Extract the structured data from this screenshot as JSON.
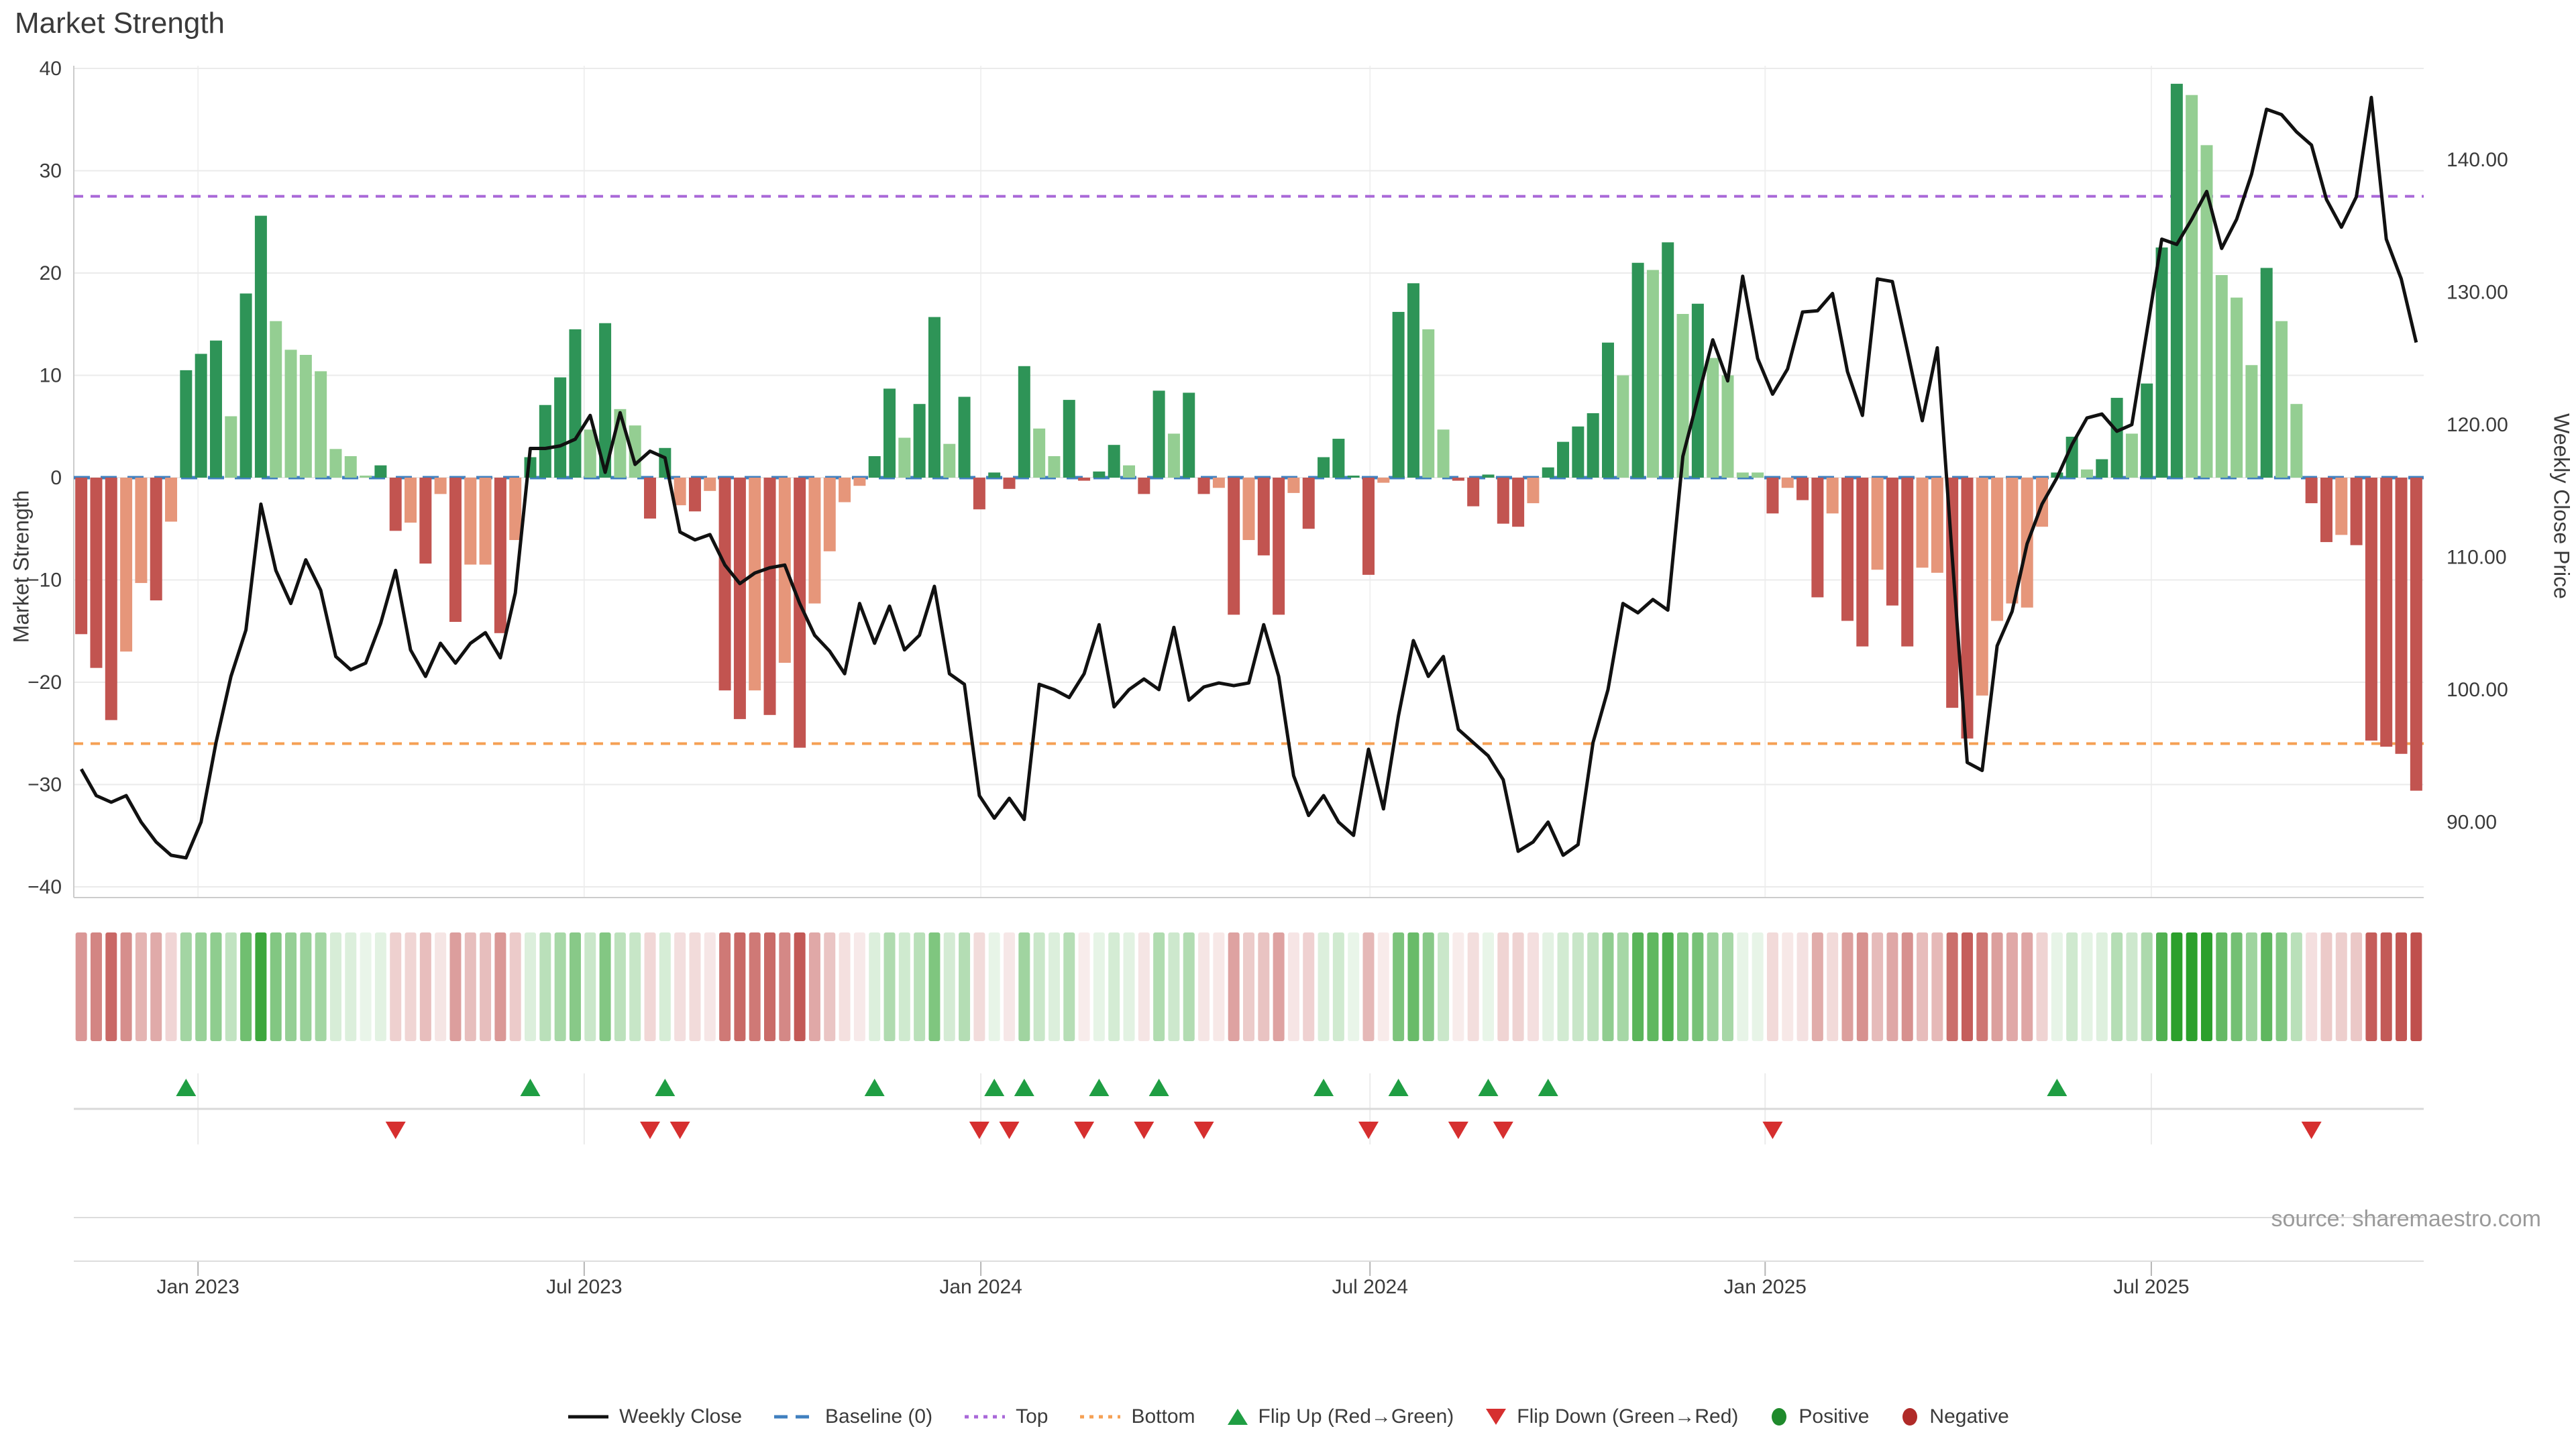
{
  "title": "Market Strength",
  "source": "source: sharemaestro.com",
  "axes": {
    "left_label": "Market Strength",
    "right_label": "Weekly Close Price",
    "yticks_left": [
      "40",
      "30",
      "20",
      "10",
      "0",
      "−10",
      "−20",
      "−30",
      "−40"
    ],
    "yticks_left_values": [
      40,
      30,
      20,
      10,
      0,
      -10,
      -20,
      -30,
      -40
    ],
    "yticks_right": [
      "140.00",
      "130.00",
      "120.00",
      "110.00",
      "100.00",
      "90.00"
    ],
    "yticks_right_values": [
      140,
      130,
      120,
      110,
      100,
      90
    ]
  },
  "reference_lines": {
    "baseline_label": "Baseline (0)",
    "baseline_value": 0,
    "top_label": "Top",
    "top_value": 27.5,
    "bottom_label": "Bottom",
    "bottom_value": -26
  },
  "legend": {
    "items": [
      {
        "label": "Weekly Close",
        "swatch": "line"
      },
      {
        "label": "Baseline (0)",
        "swatch": "dash-blue"
      },
      {
        "label": "Top",
        "swatch": "dot-purple"
      },
      {
        "label": "Bottom",
        "swatch": "dot-orange"
      },
      {
        "label": "Flip Up (Red→Green)",
        "swatch": "triangle-up"
      },
      {
        "label": "Flip Down (Green→Red)",
        "swatch": "triangle-down"
      },
      {
        "label": "Positive",
        "swatch": "circle-green"
      },
      {
        "label": "Negative",
        "swatch": "circle-red"
      }
    ]
  },
  "colors": {
    "pos_dark": "#2e9457",
    "pos_light": "#94ce92",
    "neg_dark": "#c25450",
    "neg_light": "#e6967a",
    "line": "#111111",
    "baseline": "#4080bf",
    "top": "#a968d8",
    "bottom": "#f5a054",
    "grid": "#ebebeb",
    "vgrid": "#f0f0f0",
    "spine": "#cccccc",
    "tick_text": "#3b3b3b",
    "marker_up": "#1f9e43",
    "marker_down": "#d62f2f",
    "legend_pos_dot": "#1f8a2c",
    "legend_neg_dot": "#b02a28",
    "heat_green": "#2ca02c",
    "heat_red": "#c0504d"
  },
  "chart_data": {
    "type": "bar",
    "description": "Weekly market strength bars (left axis) with weekly close price line (right axis), heatmap strip of same weekly values, and flip-up/flip-down sign-change markers.",
    "title": "Market Strength",
    "xlabel": "",
    "ylabel_left": "Market Strength",
    "ylabel_right": "Weekly Close Price",
    "ylim_left": [
      -40,
      40
    ],
    "ylim_right_ticks": [
      90,
      140
    ],
    "top_line": 27.5,
    "bottom_line": -26,
    "xticks": [
      {
        "label": "Jan 2023",
        "week": 8.3
      },
      {
        "label": "Jul 2023",
        "week": 34.1
      },
      {
        "label": "Jan 2024",
        "week": 60.6
      },
      {
        "label": "Jul 2024",
        "week": 86.6
      },
      {
        "label": "Jan 2025",
        "week": 113.0
      },
      {
        "label": "Jul 2025",
        "week": 138.8
      }
    ],
    "strength": [
      -15.3,
      -18.6,
      -23.7,
      -17.0,
      -10.3,
      -12.0,
      -4.3,
      10.5,
      12.1,
      13.4,
      6.0,
      18.0,
      25.6,
      15.3,
      12.5,
      12.0,
      10.4,
      2.8,
      2.1,
      0.2,
      1.2,
      -5.2,
      -4.4,
      -8.4,
      -1.6,
      -14.1,
      -8.5,
      -8.5,
      -15.2,
      -6.1,
      2.0,
      7.1,
      9.8,
      14.5,
      4.7,
      15.1,
      6.7,
      5.1,
      -4.0,
      2.9,
      -2.7,
      -3.3,
      -1.3,
      -20.8,
      -23.6,
      -20.8,
      -23.2,
      -18.1,
      -26.4,
      -12.3,
      -7.2,
      -2.4,
      -0.8,
      2.1,
      8.7,
      3.9,
      7.2,
      15.7,
      3.3,
      7.9,
      -3.1,
      0.5,
      -1.1,
      10.9,
      4.8,
      2.1,
      7.6,
      -0.3,
      0.6,
      3.2,
      1.2,
      -1.6,
      8.5,
      4.3,
      8.3,
      -1.6,
      -1.0,
      -13.4,
      -6.1,
      -7.6,
      -13.4,
      -1.5,
      -5.0,
      2.0,
      3.8,
      0.2,
      -9.5,
      -0.5,
      16.2,
      19.0,
      14.5,
      4.7,
      -0.3,
      -2.8,
      0.3,
      -4.5,
      -4.8,
      -2.5,
      1.0,
      3.5,
      5.0,
      6.3,
      13.2,
      10.0,
      21.0,
      20.3,
      23.0,
      16.0,
      17.0,
      11.7,
      10.0,
      0.5,
      0.5,
      -3.5,
      -1.0,
      -2.2,
      -11.7,
      -3.5,
      -14.0,
      -16.5,
      -9.0,
      -12.5,
      -16.5,
      -8.8,
      -9.3,
      -22.5,
      -25.5,
      -21.3,
      -14.0,
      -12.3,
      -12.7,
      -4.8,
      0.5,
      4.0,
      0.8,
      1.8,
      7.8,
      4.3,
      9.2,
      22.5,
      38.5,
      37.4,
      32.5,
      19.8,
      17.6,
      11.0,
      20.5,
      15.3,
      7.2,
      -2.5,
      -6.3,
      -5.6,
      -6.6,
      -25.7,
      -26.3,
      -27.0,
      -30.6
    ],
    "shade_dark": [
      1,
      1,
      1,
      0,
      0,
      1,
      0,
      1,
      1,
      1,
      0,
      1,
      1,
      0,
      0,
      0,
      0,
      0,
      0,
      0,
      1,
      1,
      0,
      1,
      0,
      1,
      0,
      0,
      1,
      0,
      1,
      1,
      1,
      1,
      0,
      1,
      0,
      0,
      1,
      1,
      0,
      1,
      0,
      1,
      1,
      0,
      1,
      0,
      1,
      0,
      0,
      0,
      0,
      1,
      1,
      0,
      1,
      1,
      0,
      1,
      1,
      1,
      1,
      1,
      0,
      0,
      1,
      1,
      1,
      1,
      0,
      1,
      1,
      0,
      1,
      1,
      0,
      1,
      0,
      1,
      1,
      0,
      1,
      1,
      1,
      1,
      1,
      0,
      1,
      1,
      0,
      0,
      1,
      1,
      1,
      1,
      1,
      0,
      1,
      1,
      1,
      1,
      1,
      0,
      1,
      0,
      1,
      0,
      1,
      0,
      0,
      0,
      0,
      1,
      0,
      1,
      1,
      0,
      1,
      1,
      0,
      1,
      1,
      0,
      0,
      1,
      1,
      0,
      0,
      0,
      0,
      0,
      1,
      1,
      0,
      1,
      1,
      0,
      1,
      1,
      1,
      0,
      0,
      0,
      0,
      0,
      1,
      0,
      0,
      1,
      1,
      0,
      1,
      1,
      1,
      1,
      1
    ],
    "price": [
      94.0,
      92.0,
      91.5,
      92.0,
      90.0,
      88.5,
      87.5,
      87.3,
      90.0,
      96.0,
      101.0,
      104.5,
      114.0,
      109.0,
      106.5,
      109.8,
      107.5,
      102.5,
      101.5,
      102.0,
      105.0,
      109.0,
      103.0,
      101.0,
      103.5,
      102.0,
      103.5,
      104.3,
      102.4,
      107.3,
      118.2,
      118.2,
      118.4,
      118.9,
      120.7,
      116.4,
      120.9,
      117.0,
      118.0,
      117.5,
      111.9,
      111.3,
      111.7,
      109.4,
      108.0,
      108.8,
      109.2,
      109.4,
      106.5,
      104.1,
      102.9,
      101.2,
      106.5,
      103.5,
      106.3,
      103.0,
      104.1,
      107.8,
      101.2,
      100.4,
      92.0,
      90.3,
      91.8,
      90.2,
      100.4,
      100.0,
      99.4,
      101.2,
      104.9,
      98.7,
      100.0,
      100.8,
      100.0,
      104.7,
      99.2,
      100.2,
      100.5,
      100.3,
      100.5,
      104.9,
      101.0,
      93.5,
      90.5,
      92.0,
      90.0,
      89.0,
      95.5,
      91.0,
      98.0,
      103.7,
      101.0,
      102.5,
      97.0,
      96.0,
      95.0,
      93.2,
      87.8,
      88.5,
      90.0,
      87.5,
      88.3,
      96.0,
      100.0,
      106.5,
      105.8,
      106.8,
      106.0,
      117.6,
      122.0,
      126.4,
      123.3,
      131.2,
      125.0,
      122.3,
      124.2,
      128.5,
      128.6,
      129.9,
      124.0,
      120.7,
      131.0,
      130.8,
      125.6,
      120.3,
      125.8,
      110.0,
      94.5,
      93.9,
      103.3,
      105.9,
      111.0,
      114.0,
      116.0,
      118.5,
      120.5,
      120.8,
      119.5,
      120.0,
      127.0,
      134.0,
      133.6,
      135.5,
      137.6,
      133.3,
      135.5,
      138.9,
      143.8,
      143.4,
      142.1,
      141.1,
      137.0,
      134.9,
      137.2,
      144.7,
      134.0,
      131.0,
      126.2
    ],
    "flip_up_weeks": [
      7,
      30,
      39,
      53,
      61,
      63,
      68,
      72,
      83,
      88,
      94,
      98,
      132
    ],
    "flip_down_weeks": [
      21,
      38,
      40,
      60,
      62,
      67,
      71,
      75,
      86,
      92,
      95,
      113,
      149
    ],
    "legend_position": "bottom",
    "grid": true
  }
}
